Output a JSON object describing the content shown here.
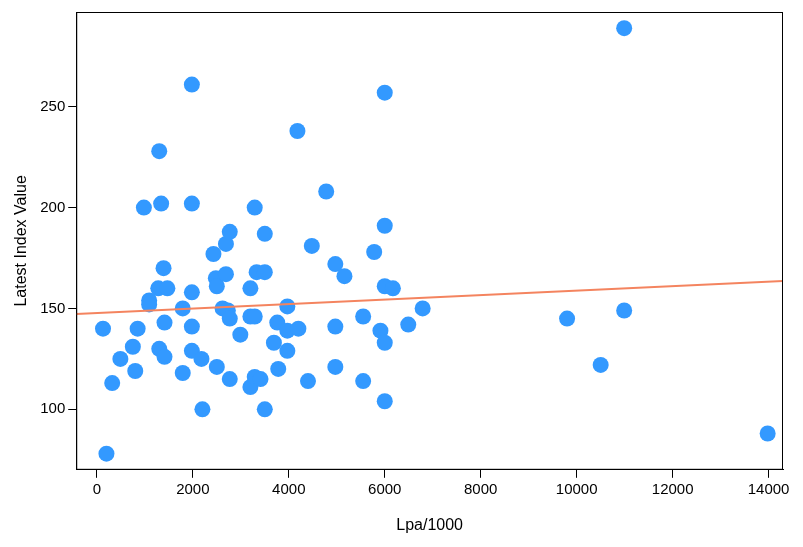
{
  "chart_data": {
    "type": "scatter",
    "x_label": "Lpa/1000",
    "y_label": "Latest Index Value",
    "xlim": [
      -430,
      14300
    ],
    "ylim": [
      70,
      297
    ],
    "xticks": [
      0,
      2000,
      4000,
      6000,
      8000,
      10000,
      12000,
      14000
    ],
    "yticks": [
      100,
      150,
      200,
      250
    ],
    "grid": false,
    "series": [
      {
        "type": "scatter",
        "color": "#3399ff",
        "marker": "circle",
        "x": [
          128,
          200,
          320,
          490,
          750,
          800,
          850,
          980,
          1090,
          1090,
          1280,
          1300,
          1300,
          1340,
          1390,
          1410,
          1410,
          1470,
          1790,
          1790,
          1980,
          1980,
          1980,
          1980,
          1980,
          2180,
          2200,
          2430,
          2480,
          2500,
          2500,
          2620,
          2690,
          2690,
          2730,
          2770,
          2770,
          2770,
          2990,
          3200,
          3200,
          3200,
          3290,
          3290,
          3290,
          3330,
          3410,
          3500,
          3500,
          3500,
          3690,
          3760,
          3780,
          3970,
          3970,
          3970,
          4180,
          4200,
          4400,
          4480,
          4780,
          4970,
          4970,
          4970,
          5160,
          5550,
          5550,
          5780,
          5910,
          6000,
          6000,
          6000,
          6000,
          6000,
          6170,
          6490,
          6790,
          9800,
          10500,
          10990,
          10990,
          13980
        ],
        "values": [
          140,
          78,
          113,
          125,
          131,
          119,
          140,
          200,
          154,
          152,
          160,
          228,
          130,
          202,
          170,
          143,
          126,
          160,
          150,
          118,
          261,
          202,
          158,
          141,
          129,
          125,
          100,
          177,
          165,
          161,
          121,
          150,
          182,
          167,
          149,
          188,
          145,
          115,
          137,
          160,
          146,
          111,
          200,
          146,
          116,
          168,
          115,
          187,
          168,
          100,
          133,
          143,
          120,
          151,
          139,
          129,
          238,
          140,
          114,
          181,
          208,
          172,
          141,
          121,
          166,
          146,
          114,
          178,
          139,
          257,
          191,
          161,
          133,
          104,
          160,
          142,
          150,
          145,
          122,
          289,
          149,
          88
        ]
      },
      {
        "type": "line",
        "color": "#f4845f",
        "line_style": "solid",
        "x": [
          -430,
          14300
        ],
        "values": [
          147.3,
          163.6
        ]
      }
    ]
  }
}
